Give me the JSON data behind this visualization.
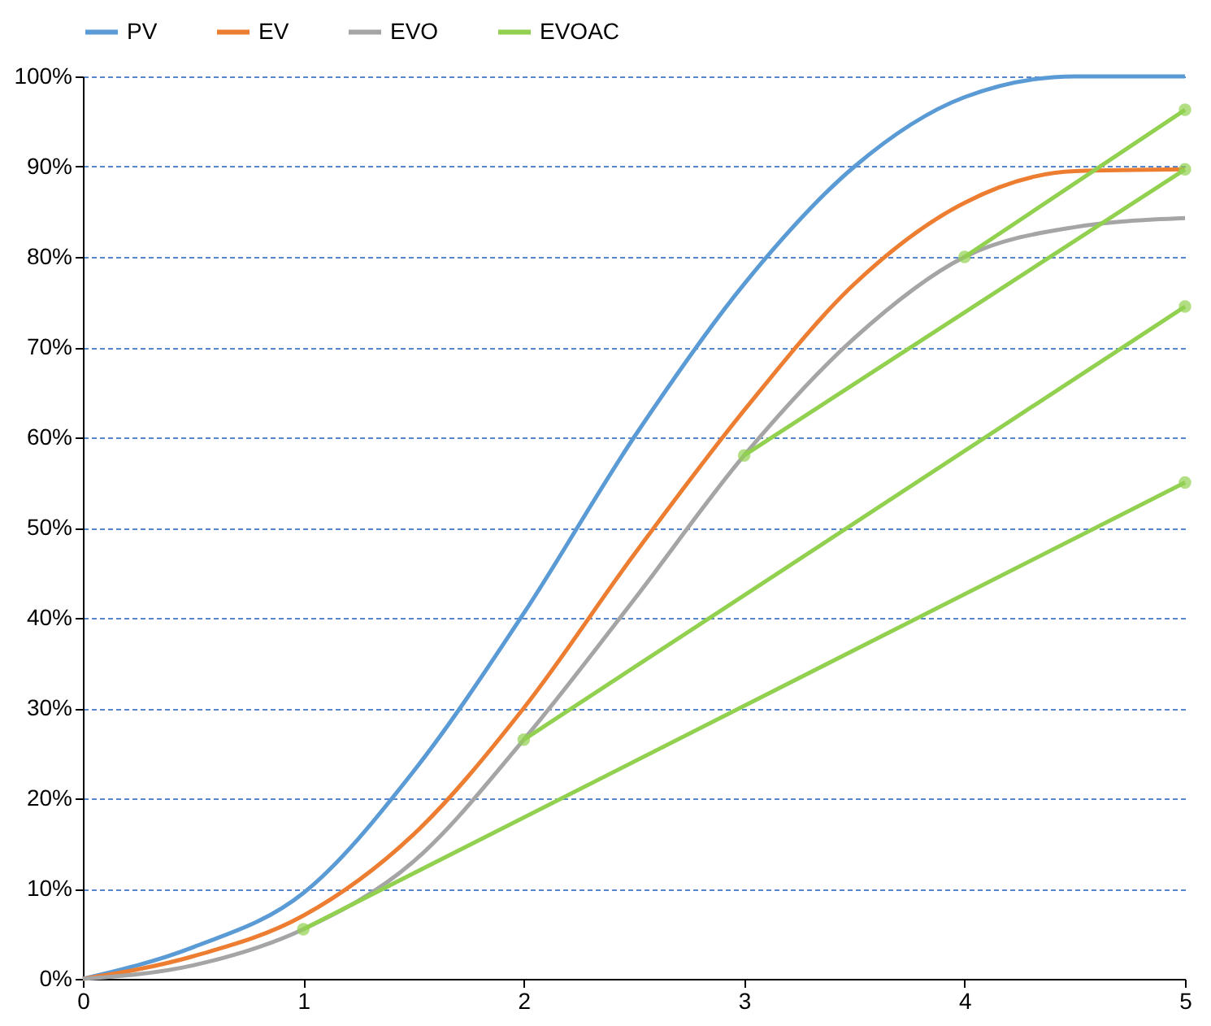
{
  "chart_data": {
    "type": "line",
    "x": [
      0,
      0.5,
      1,
      1.5,
      2,
      2.5,
      3,
      3.5,
      4,
      4.5,
      5
    ],
    "series": [
      {
        "name": "PV",
        "color": "#5b9bd5",
        "values": [
          0,
          3.5,
          9.5,
          23,
          40.5,
          60,
          77,
          90,
          97.7,
          100,
          100
        ]
      },
      {
        "name": "EV",
        "color": "#ed7d31",
        "values": [
          0,
          2.5,
          7,
          16,
          30,
          47,
          63,
          77,
          86,
          89.5,
          89.7
        ]
      },
      {
        "name": "EVO",
        "color": "#a5a5a5",
        "values": [
          0,
          1.5,
          5.5,
          13,
          26.5,
          42,
          58,
          71,
          80,
          83.3,
          84.3
        ]
      },
      {
        "name": "EVOAC",
        "color": "#92d050",
        "marker": "circle",
        "x": [
          1,
          5
        ],
        "values": [
          5.5,
          55
        ]
      },
      {
        "color": "#92d050",
        "marker": "circle",
        "x": [
          2,
          5
        ],
        "values": [
          26.5,
          74.5
        ]
      },
      {
        "color": "#92d050",
        "marker": "circle",
        "x": [
          3,
          5
        ],
        "values": [
          58,
          89.7
        ]
      },
      {
        "color": "#92d050",
        "marker": "circle",
        "x": [
          4,
          5
        ],
        "values": [
          80,
          96.3
        ]
      }
    ],
    "xlim": [
      0,
      5
    ],
    "xticks": [
      0,
      1,
      2,
      3,
      4,
      5
    ],
    "ylim": [
      0,
      100
    ],
    "yticks": [
      {
        "value": 0,
        "label": "0%"
      },
      {
        "value": 10,
        "label": "10%"
      },
      {
        "value": 20,
        "label": "20%"
      },
      {
        "value": 30,
        "label": "30%"
      },
      {
        "value": 40,
        "label": "40%"
      },
      {
        "value": 50,
        "label": "50%"
      },
      {
        "value": 60,
        "label": "60%"
      },
      {
        "value": 70,
        "label": "70%"
      },
      {
        "value": 80,
        "label": "80%"
      },
      {
        "value": 90,
        "label": "90%"
      },
      {
        "value": 100,
        "label": "100%"
      }
    ],
    "grid": "y",
    "legend": "top"
  }
}
